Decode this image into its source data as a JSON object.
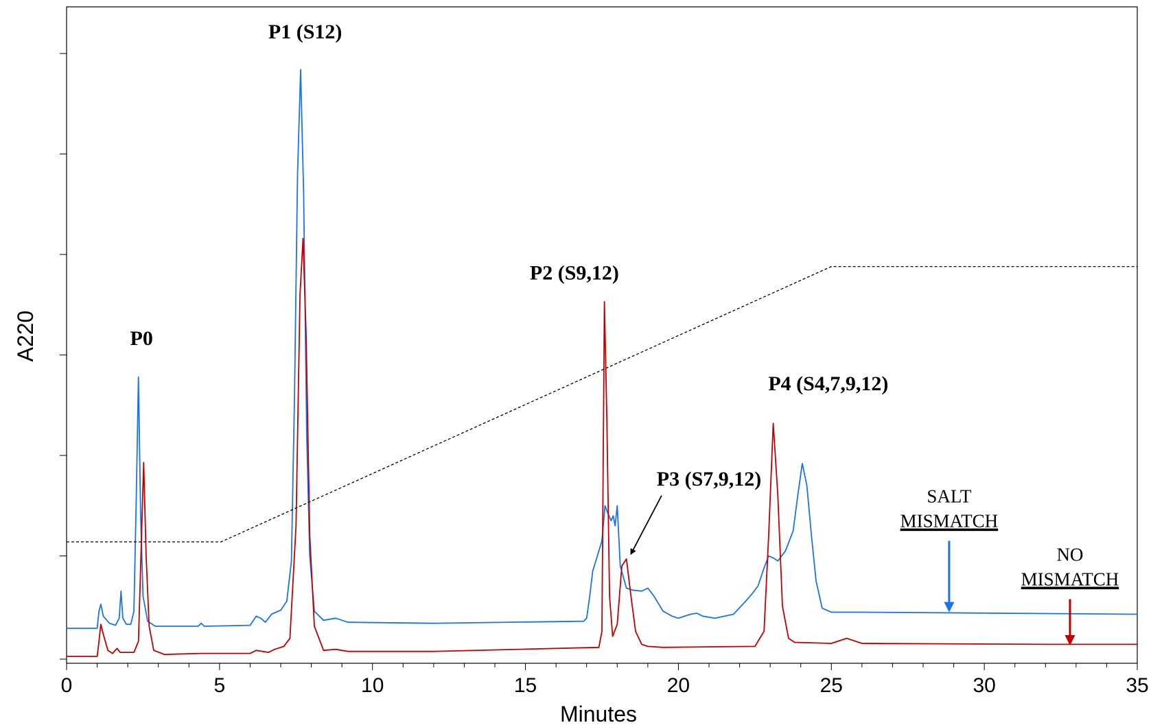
{
  "chart_data": {
    "type": "line",
    "xlabel": "Minutes",
    "ylabel": "A220",
    "xlim": [
      0,
      35
    ],
    "ylim": [
      0,
      6.5
    ],
    "x_ticks": [
      0,
      5,
      10,
      15,
      20,
      25,
      30,
      35
    ],
    "y_ticks": [
      1,
      2,
      3,
      4,
      5,
      6
    ],
    "grid": false,
    "series": [
      {
        "color": "#1a73e8",
        "role": "salt-mismatch",
        "baseline": 0.28,
        "points": [
          [
            0,
            0.28
          ],
          [
            1.0,
            0.28
          ],
          [
            1.06,
            0.45
          ],
          [
            1.12,
            0.52
          ],
          [
            1.2,
            0.4
          ],
          [
            1.4,
            0.33
          ],
          [
            1.6,
            0.31
          ],
          [
            1.72,
            0.38
          ],
          [
            1.78,
            0.65
          ],
          [
            1.84,
            0.38
          ],
          [
            1.95,
            0.32
          ],
          [
            2.1,
            0.32
          ],
          [
            2.2,
            0.45
          ],
          [
            2.28,
            1.6
          ],
          [
            2.35,
            2.78
          ],
          [
            2.42,
            1.4
          ],
          [
            2.5,
            0.6
          ],
          [
            2.65,
            0.35
          ],
          [
            2.9,
            0.3
          ],
          [
            4.3,
            0.3
          ],
          [
            4.4,
            0.33
          ],
          [
            4.5,
            0.3
          ],
          [
            6.0,
            0.31
          ],
          [
            6.2,
            0.4
          ],
          [
            6.35,
            0.38
          ],
          [
            6.5,
            0.34
          ],
          [
            6.7,
            0.42
          ],
          [
            6.85,
            0.44
          ],
          [
            7.0,
            0.46
          ],
          [
            7.2,
            0.55
          ],
          [
            7.35,
            0.95
          ],
          [
            7.45,
            2.6
          ],
          [
            7.55,
            4.8
          ],
          [
            7.65,
            5.84
          ],
          [
            7.75,
            4.6
          ],
          [
            7.85,
            2.2
          ],
          [
            7.95,
            1.0
          ],
          [
            8.1,
            0.45
          ],
          [
            8.4,
            0.36
          ],
          [
            8.8,
            0.38
          ],
          [
            9.2,
            0.34
          ],
          [
            12.0,
            0.33
          ],
          [
            16.9,
            0.35
          ],
          [
            17.0,
            0.38
          ],
          [
            17.1,
            0.6
          ],
          [
            17.2,
            0.85
          ],
          [
            17.35,
            1.0
          ],
          [
            17.5,
            1.15
          ],
          [
            17.6,
            1.5
          ],
          [
            17.7,
            1.42
          ],
          [
            17.8,
            1.35
          ],
          [
            17.87,
            1.4
          ],
          [
            17.93,
            1.3
          ],
          [
            18.0,
            1.5
          ],
          [
            18.1,
            0.9
          ],
          [
            18.3,
            0.68
          ],
          [
            18.5,
            0.66
          ],
          [
            18.8,
            0.65
          ],
          [
            19.0,
            0.68
          ],
          [
            19.2,
            0.6
          ],
          [
            19.5,
            0.45
          ],
          [
            19.8,
            0.4
          ],
          [
            20.0,
            0.38
          ],
          [
            20.2,
            0.4
          ],
          [
            20.4,
            0.42
          ],
          [
            20.6,
            0.43
          ],
          [
            20.8,
            0.4
          ],
          [
            21.2,
            0.38
          ],
          [
            21.8,
            0.42
          ],
          [
            22.2,
            0.55
          ],
          [
            22.4,
            0.62
          ],
          [
            22.6,
            0.7
          ],
          [
            22.8,
            0.88
          ],
          [
            22.95,
            1.0
          ],
          [
            23.1,
            0.98
          ],
          [
            23.25,
            0.95
          ],
          [
            23.5,
            1.05
          ],
          [
            23.75,
            1.25
          ],
          [
            23.9,
            1.6
          ],
          [
            24.05,
            1.92
          ],
          [
            24.2,
            1.7
          ],
          [
            24.35,
            1.2
          ],
          [
            24.5,
            0.75
          ],
          [
            24.7,
            0.48
          ],
          [
            25.0,
            0.44
          ],
          [
            26.0,
            0.44
          ],
          [
            35.0,
            0.42
          ]
        ]
      },
      {
        "color": "#c00000",
        "role": "no-mismatch",
        "baseline": 0.0,
        "points": [
          [
            0,
            0.0
          ],
          [
            1.0,
            0.0
          ],
          [
            1.06,
            0.15
          ],
          [
            1.12,
            0.32
          ],
          [
            1.2,
            0.22
          ],
          [
            1.35,
            0.06
          ],
          [
            1.5,
            0.03
          ],
          [
            1.65,
            0.08
          ],
          [
            1.75,
            0.04
          ],
          [
            2.2,
            0.04
          ],
          [
            2.35,
            0.15
          ],
          [
            2.45,
            1.2
          ],
          [
            2.52,
            1.93
          ],
          [
            2.6,
            1.0
          ],
          [
            2.7,
            0.3
          ],
          [
            2.85,
            0.06
          ],
          [
            3.2,
            0.02
          ],
          [
            4.4,
            0.03
          ],
          [
            6.0,
            0.03
          ],
          [
            6.2,
            0.06
          ],
          [
            6.4,
            0.05
          ],
          [
            6.6,
            0.04
          ],
          [
            6.8,
            0.07
          ],
          [
            7.1,
            0.1
          ],
          [
            7.3,
            0.18
          ],
          [
            7.5,
            1.3
          ],
          [
            7.63,
            3.6
          ],
          [
            7.73,
            4.16
          ],
          [
            7.83,
            3.2
          ],
          [
            7.95,
            1.2
          ],
          [
            8.1,
            0.3
          ],
          [
            8.4,
            0.06
          ],
          [
            8.8,
            0.07
          ],
          [
            9.2,
            0.05
          ],
          [
            12.0,
            0.05
          ],
          [
            17.4,
            0.09
          ],
          [
            17.5,
            0.25
          ],
          [
            17.58,
            3.53
          ],
          [
            17.66,
            2.4
          ],
          [
            17.75,
            0.6
          ],
          [
            17.85,
            0.2
          ],
          [
            18.0,
            0.32
          ],
          [
            18.15,
            0.9
          ],
          [
            18.3,
            0.97
          ],
          [
            18.45,
            0.6
          ],
          [
            18.6,
            0.25
          ],
          [
            18.8,
            0.12
          ],
          [
            19.0,
            0.1
          ],
          [
            19.5,
            0.09
          ],
          [
            22.5,
            0.1
          ],
          [
            22.8,
            0.25
          ],
          [
            22.95,
            1.2
          ],
          [
            23.1,
            2.32
          ],
          [
            23.25,
            1.6
          ],
          [
            23.4,
            0.5
          ],
          [
            23.6,
            0.18
          ],
          [
            23.8,
            0.14
          ],
          [
            25.0,
            0.13
          ],
          [
            25.5,
            0.18
          ],
          [
            26.0,
            0.13
          ],
          [
            32.0,
            0.12
          ],
          [
            35.0,
            0.12
          ]
        ]
      },
      {
        "color": "#000000",
        "role": "gradient",
        "dashed": true,
        "points": [
          [
            0,
            1.14
          ],
          [
            5.05,
            1.14
          ],
          [
            25.0,
            3.88
          ],
          [
            35.0,
            3.88
          ]
        ]
      }
    ],
    "peak_labels": [
      {
        "text": "P0",
        "x": 2.45,
        "y": 3.1
      },
      {
        "text": "P1 (S12)",
        "x": 7.8,
        "y": 6.15
      },
      {
        "text": "P2 (S9,12)",
        "x": 16.6,
        "y": 3.75
      },
      {
        "text": "P3 (S7,9,12)",
        "x": 21.0,
        "y": 1.7
      },
      {
        "text": "P4 (S4,7,9,12)",
        "x": 24.9,
        "y": 2.65
      }
    ],
    "annotations": [
      {
        "line1": "SALT",
        "line2": "MISMATCH",
        "color": "#1a73e8",
        "arrow_x": 28.85,
        "arrow_from": 1.15,
        "arrow_to": 0.46
      },
      {
        "line1": "NO",
        "line2": "MISMATCH",
        "color": "#c00000",
        "arrow_x": 32.8,
        "arrow_from": 0.57,
        "arrow_to": 0.13
      }
    ],
    "pointer_arrow": {
      "from": [
        19.45,
        1.6
      ],
      "to": [
        18.45,
        1.02
      ]
    }
  }
}
